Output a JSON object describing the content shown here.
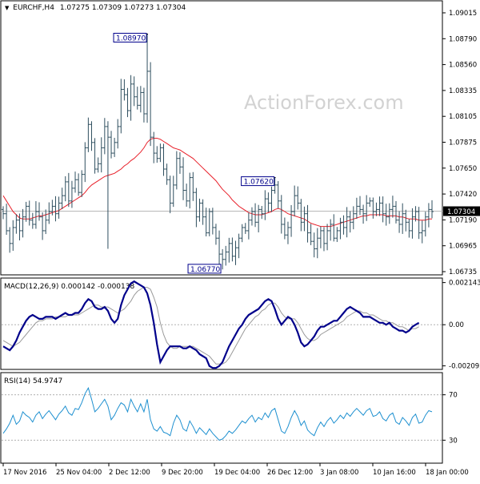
{
  "header": {
    "symbol": "EURCHF,H4",
    "ohlc": "1.07275 1.07309 1.07273 1.07304"
  },
  "watermark": "ActionForex.com",
  "colors": {
    "price_bar": "#2f4f5f",
    "ma": "#e8202a",
    "macd": "#00008b",
    "signal": "#9a9a9a",
    "rsi": "#1e90d0",
    "grid": "#b0b0b0",
    "frame": "#000000"
  },
  "chart_data": [
    {
      "type": "ohlc",
      "panel": "price",
      "ylim": [
        1.06735,
        1.092
      ],
      "y_ticks": [
        "1.09015",
        "1.08790",
        "1.08560",
        "1.08335",
        "1.08105",
        "1.07875",
        "1.07650",
        "1.07420",
        "1.07190",
        "1.06965",
        "1.06735"
      ],
      "current_price_label": "1.07304",
      "current_price": 1.07304,
      "annotations": [
        {
          "label": "1.08970",
          "value": 1.0897,
          "bar_index": 44
        },
        {
          "label": "1.07620",
          "value": 1.0762,
          "bar_index": 83
        },
        {
          "label": "1.06770",
          "value": 1.0677,
          "bar_index": 66
        }
      ],
      "x_ticks": [
        "17 Nov 2016",
        "25 Nov 04:00",
        "2 Dec 12:00",
        "9 Dec 20:00",
        "19 Dec 04:00",
        "26 Dec 12:00",
        "3 Jan 08:00",
        "10 Jan 16:00",
        "18 Jan 00:00"
      ],
      "close": [
        1.0728,
        1.0712,
        1.07,
        1.0715,
        1.0722,
        1.0712,
        1.0725,
        1.0735,
        1.0722,
        1.0718,
        1.073,
        1.0725,
        1.0712,
        1.0722,
        1.073,
        1.0735,
        1.0728,
        1.0738,
        1.0745,
        1.0758,
        1.074,
        1.0752,
        1.076,
        1.0748,
        1.0765,
        1.079,
        1.0812,
        1.0795,
        1.077,
        1.0775,
        1.079,
        1.081,
        1.08,
        1.0785,
        1.0795,
        1.081,
        1.0845,
        1.084,
        1.0825,
        1.085,
        1.0838,
        1.083,
        1.0842,
        1.0822,
        1.0862,
        1.08,
        1.0785,
        1.078,
        1.079,
        1.077,
        1.076,
        1.0738,
        1.0755,
        1.078,
        1.0772,
        1.075,
        1.074,
        1.0762,
        1.0748,
        1.0725,
        1.0738,
        1.0725,
        1.071,
        1.073,
        1.0715,
        1.0705,
        1.069,
        1.0685,
        1.0692,
        1.07,
        1.0688,
        1.0696,
        1.0705,
        1.0715,
        1.0712,
        1.0722,
        1.073,
        1.072,
        1.0732,
        1.0728,
        1.0742,
        1.0738,
        1.075,
        1.0755,
        1.074,
        1.0718,
        1.0708,
        1.0715,
        1.073,
        1.0745,
        1.0738,
        1.072,
        1.0728,
        1.071,
        1.0702,
        1.0695,
        1.0705,
        1.0712,
        1.07,
        1.0712,
        1.0718,
        1.0705,
        1.0712,
        1.072,
        1.0715,
        1.0725,
        1.072,
        1.0728,
        1.0735,
        1.0732,
        1.0728,
        1.0738,
        1.074,
        1.073,
        1.0732,
        1.0738,
        1.0728,
        1.0725,
        1.0732,
        1.0735,
        1.0722,
        1.0718,
        1.0728,
        1.072,
        1.0712,
        1.0725,
        1.073,
        1.071,
        1.0712,
        1.0725,
        1.0732,
        1.073
      ],
      "ma": [
        1.0745,
        1.074,
        1.0735,
        1.073,
        1.0727,
        1.0724,
        1.0723,
        1.0723,
        1.0723,
        1.0724,
        1.0725,
        1.0726,
        1.0726,
        1.0727,
        1.0728,
        1.0729,
        1.073,
        1.0731,
        1.0733,
        1.0735,
        1.0737,
        1.0739,
        1.0741,
        1.0743,
        1.0745,
        1.0748,
        1.0752,
        1.0755,
        1.0757,
        1.0759,
        1.0761,
        1.0763,
        1.0764,
        1.0765,
        1.0766,
        1.0768,
        1.077,
        1.0773,
        1.0775,
        1.0778,
        1.078,
        1.0783,
        1.0786,
        1.079,
        1.0795,
        1.0798,
        1.0799,
        1.0799,
        1.0798,
        1.0796,
        1.0794,
        1.0792,
        1.079,
        1.0789,
        1.0788,
        1.0786,
        1.0784,
        1.0782,
        1.078,
        1.0777,
        1.0774,
        1.0771,
        1.0768,
        1.0765,
        1.0762,
        1.0759,
        1.0755,
        1.0751,
        1.0748,
        1.0745,
        1.0741,
        1.0738,
        1.0735,
        1.0733,
        1.0731,
        1.0729,
        1.0728,
        1.0727,
        1.0727,
        1.0727,
        1.0728,
        1.0729,
        1.073,
        1.0732,
        1.0733,
        1.0732,
        1.073,
        1.0728,
        1.0727,
        1.0726,
        1.0725,
        1.0724,
        1.0723,
        1.0721,
        1.0719,
        1.0718,
        1.0717,
        1.0716,
        1.0716,
        1.0716,
        1.0716,
        1.0717,
        1.0718,
        1.0719,
        1.072,
        1.0721,
        1.0722,
        1.0723,
        1.0724,
        1.0725,
        1.0726,
        1.0726,
        1.0727,
        1.0727,
        1.0727,
        1.0727,
        1.0727,
        1.0726,
        1.0726,
        1.0726,
        1.0726,
        1.0725,
        1.0725,
        1.0724,
        1.0723,
        1.0723,
        1.0723,
        1.0722,
        1.0722,
        1.0722,
        1.0723,
        1.0723
      ]
    },
    {
      "type": "line",
      "panel": "macd",
      "label": "MACD(12,26,9) 0.000142 -0.000138",
      "ylim": [
        -0.00215,
        0.00225
      ],
      "y_ticks": [
        "0.002143",
        "0.00",
        "-0.002092"
      ],
      "series": [
        {
          "name": "MACD",
          "values": [
            -0.0011,
            -0.0012,
            -0.0013,
            -0.0011,
            -0.0008,
            -0.0004,
            -0.0001,
            0.0002,
            0.0004,
            0.0005,
            0.0004,
            0.0003,
            0.0003,
            0.0004,
            0.0004,
            0.0004,
            0.0003,
            0.0004,
            0.0005,
            0.0006,
            0.0005,
            0.0005,
            0.0006,
            0.0006,
            0.0008,
            0.0011,
            0.0013,
            0.0012,
            0.0009,
            0.0008,
            0.0008,
            0.0009,
            0.0007,
            0.0003,
            0.0001,
            0.0003,
            0.001,
            0.0015,
            0.0018,
            0.0021,
            0.0022,
            0.0021,
            0.002,
            0.0019,
            0.0016,
            0.001,
            0.0001,
            -0.001,
            -0.0019,
            -0.0016,
            -0.0013,
            -0.0011,
            -0.0011,
            -0.0011,
            -0.0011,
            -0.0012,
            -0.0012,
            -0.0011,
            -0.0012,
            -0.0013,
            -0.0015,
            -0.0016,
            -0.0017,
            -0.0021,
            -0.0022,
            -0.0022,
            -0.0021,
            -0.0019,
            -0.0015,
            -0.0011,
            -0.0008,
            -0.0005,
            -0.0002,
            -0.0,
            0.0003,
            0.0005,
            0.0006,
            0.0007,
            0.0008,
            0.001,
            0.0012,
            0.0013,
            0.0012,
            0.0008,
            0.0003,
            -0.0,
            0.0002,
            0.0004,
            0.0003,
            0.0,
            -0.0004,
            -0.0009,
            -0.0011,
            -0.001,
            -0.0008,
            -0.0006,
            -0.0003,
            -0.0001,
            -0.0001,
            0.0,
            0.0001,
            0.0002,
            0.0002,
            0.0004,
            0.0006,
            0.0008,
            0.0009,
            0.0008,
            0.0007,
            0.0006,
            0.0004,
            0.0004,
            0.0004,
            0.0003,
            0.0002,
            0.0001,
            0.0001,
            0.0,
            0.0001,
            -0.0001,
            -0.0002,
            -0.0003,
            -0.0003,
            -0.0004,
            -0.0003,
            -0.0001,
            0.0,
            0.0001
          ]
        },
        {
          "name": "Signal",
          "values": [
            -0.0008,
            -0.0009,
            -0.001,
            -0.0011,
            -0.001,
            -0.0009,
            -0.0007,
            -0.0005,
            -0.0003,
            -0.0001,
            0.0001,
            0.0002,
            0.0002,
            0.0003,
            0.0003,
            0.0003,
            0.0004,
            0.0004,
            0.0004,
            0.0004,
            0.0005,
            0.0005,
            0.0005,
            0.0005,
            0.0006,
            0.0007,
            0.0008,
            0.0009,
            0.001,
            0.001,
            0.0009,
            0.0009,
            0.0009,
            0.0008,
            0.0007,
            0.0006,
            0.0007,
            0.0008,
            0.001,
            0.0012,
            0.0015,
            0.0017,
            0.0018,
            0.0019,
            0.0019,
            0.0018,
            0.0014,
            0.0009,
            0.0001,
            -0.0005,
            -0.0009,
            -0.0011,
            -0.0012,
            -0.0012,
            -0.0011,
            -0.0011,
            -0.0011,
            -0.0011,
            -0.0011,
            -0.0012,
            -0.0013,
            -0.0014,
            -0.0015,
            -0.0016,
            -0.0018,
            -0.002,
            -0.002,
            -0.002,
            -0.0019,
            -0.0017,
            -0.0014,
            -0.0011,
            -0.0008,
            -0.0005,
            -0.0002,
            0.0,
            0.0002,
            0.0004,
            0.0005,
            0.0007,
            0.0008,
            0.001,
            0.0011,
            0.0011,
            0.0009,
            0.0006,
            0.0004,
            0.0003,
            0.0003,
            0.0003,
            0.0001,
            -0.0002,
            -0.0005,
            -0.0007,
            -0.0008,
            -0.0008,
            -0.0007,
            -0.0005,
            -0.0004,
            -0.0003,
            -0.0002,
            -0.0001,
            0.0,
            0.0001,
            0.0002,
            0.0004,
            0.0005,
            0.0006,
            0.0007,
            0.0007,
            0.0006,
            0.0006,
            0.0005,
            0.0005,
            0.0004,
            0.0003,
            0.0002,
            0.0002,
            0.0001,
            0.0001,
            0.0,
            -0.0001,
            -0.0001,
            -0.0002,
            -0.0003,
            -0.0002,
            -0.0002,
            -0.0001
          ]
        }
      ]
    },
    {
      "type": "line",
      "panel": "rsi",
      "label": "RSI(14) 54.9747",
      "ylim": [
        14,
        86
      ],
      "y_ticks": [
        "70",
        "30"
      ],
      "y_tick_values": [
        70,
        30
      ],
      "values": [
        36,
        40,
        45,
        52,
        44,
        47,
        55,
        52,
        50,
        46,
        52,
        55,
        49,
        53,
        56,
        52,
        48,
        53,
        56,
        60,
        54,
        52,
        58,
        57,
        63,
        71,
        76,
        66,
        55,
        58,
        62,
        66,
        60,
        48,
        52,
        58,
        63,
        61,
        55,
        66,
        60,
        55,
        62,
        55,
        66,
        48,
        40,
        38,
        42,
        37,
        36,
        34,
        45,
        52,
        48,
        40,
        38,
        47,
        42,
        36,
        41,
        38,
        35,
        40,
        36,
        33,
        30,
        31,
        34,
        38,
        36,
        39,
        43,
        47,
        45,
        49,
        52,
        46,
        50,
        48,
        54,
        50,
        56,
        58,
        48,
        38,
        36,
        42,
        50,
        56,
        51,
        43,
        47,
        39,
        36,
        34,
        41,
        46,
        42,
        47,
        50,
        45,
        48,
        52,
        49,
        54,
        51,
        55,
        58,
        55,
        52,
        56,
        58,
        51,
        52,
        55,
        49,
        47,
        52,
        54,
        46,
        44,
        50,
        47,
        43,
        50,
        53,
        45,
        46,
        52,
        56,
        55
      ]
    }
  ]
}
